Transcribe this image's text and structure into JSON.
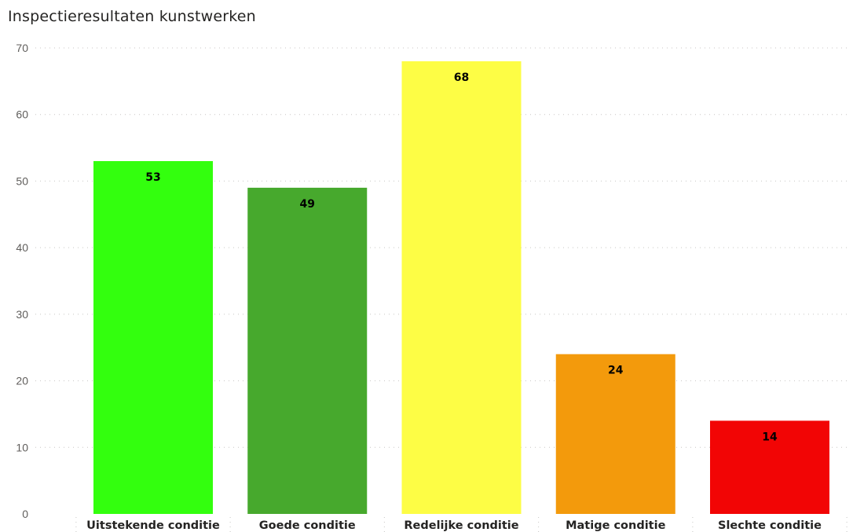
{
  "chart_data": {
    "type": "bar",
    "title": "Inspectieresultaten kunstwerken",
    "categories": [
      "Uitstekende conditie",
      "Goede conditie",
      "Redelijke conditie",
      "Matige conditie",
      "Slechte conditie"
    ],
    "values": [
      53,
      49,
      68,
      24,
      14
    ],
    "colors": [
      "#33ff0e",
      "#47a92d",
      "#fdfd45",
      "#f39a0c",
      "#f20505"
    ],
    "ylim": [
      0,
      70
    ],
    "yticks": [
      0,
      10,
      20,
      30,
      40,
      50,
      60,
      70
    ],
    "grid": true,
    "data_labels": true
  }
}
